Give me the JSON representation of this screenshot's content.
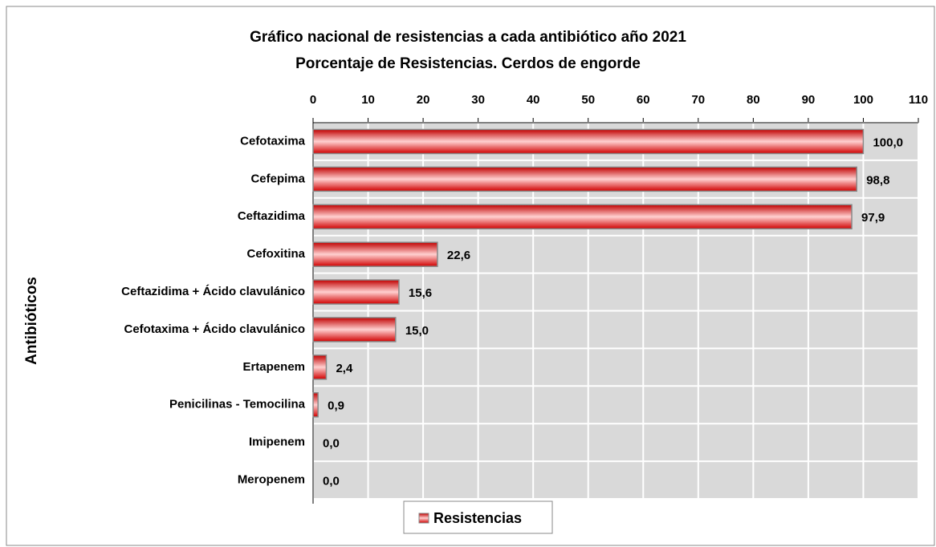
{
  "chart_data": {
    "type": "bar",
    "orientation": "horizontal",
    "title": "Gráfico nacional de resistencias a cada antibiótico año 2021",
    "subtitle": "Porcentaje de Resistencias. Cerdos de engorde",
    "y_label": "Antibióticos",
    "categories": [
      "Cefotaxima",
      "Cefepima",
      "Ceftazidima",
      "Cefoxitina",
      "Ceftazidima + Ácido clavulánico",
      "Cefotaxima + Ácido clavulánico",
      "Ertapenem",
      "Penicilinas - Temocilina",
      "Imipenem",
      "Meropenem"
    ],
    "series": [
      {
        "name": "Resistencias",
        "color": "#ff0000",
        "values": [
          100.0,
          98.8,
          97.9,
          22.6,
          15.6,
          15.0,
          2.4,
          0.9,
          0.0,
          0.0
        ],
        "value_labels": [
          "100,0",
          "98,8",
          "97,9",
          "22,6",
          "15,6",
          "15,0",
          "2,4",
          "0,9",
          "0,0",
          "0,0"
        ]
      }
    ],
    "xlim": [
      0,
      110
    ],
    "xticks": [
      0,
      10,
      20,
      30,
      40,
      50,
      60,
      70,
      80,
      90,
      100,
      110
    ],
    "grid": true,
    "legend": "bottom"
  }
}
